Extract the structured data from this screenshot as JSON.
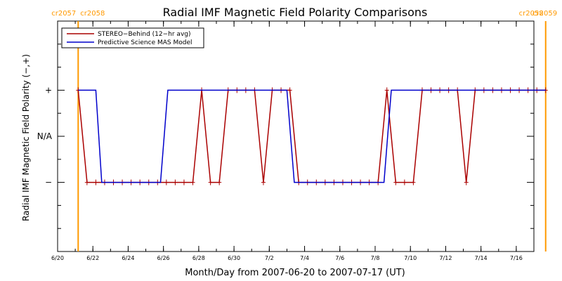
{
  "chart_data": {
    "type": "line",
    "title": "Radial IMF Magnetic Field Polarity Comparisons",
    "xlabel": "Month/Day from 2007-06-20 to 2007-07-17 (UT)",
    "ylabel": "Radial IMF Magnetic Field Polarity (−,+)",
    "xlim": [
      "2007-06-20",
      "2007-07-17"
    ],
    "ylim": [
      -2.5,
      2.5
    ],
    "x_ticks": [
      {
        "date": "2007-06-20",
        "label": "6/20"
      },
      {
        "date": "2007-06-22",
        "label": "6/22"
      },
      {
        "date": "2007-06-24",
        "label": "6/24"
      },
      {
        "date": "2007-06-26",
        "label": "6/26"
      },
      {
        "date": "2007-06-28",
        "label": "6/28"
      },
      {
        "date": "2007-06-30",
        "label": "6/30"
      },
      {
        "date": "2007-07-02",
        "label": "7/2"
      },
      {
        "date": "2007-07-04",
        "label": "7/4"
      },
      {
        "date": "2007-07-06",
        "label": "7/6"
      },
      {
        "date": "2007-07-08",
        "label": "7/8"
      },
      {
        "date": "2007-07-10",
        "label": "7/10"
      },
      {
        "date": "2007-07-12",
        "label": "7/12"
      },
      {
        "date": "2007-07-14",
        "label": "7/14"
      },
      {
        "date": "2007-07-16",
        "label": "7/16"
      }
    ],
    "y_ticks": [
      {
        "value": 1,
        "label": "+"
      },
      {
        "value": 0,
        "label": "N/A"
      },
      {
        "value": -1,
        "label": "−"
      }
    ],
    "carrington_boundaries": [
      {
        "date": "2007-06-21 04:00",
        "left_label": "cr2057",
        "right_label": "cr2058",
        "color": "#ff9900"
      },
      {
        "date": "2007-07-17 16:00",
        "left_label": "cr2058",
        "right_label": "cr2059",
        "color": "#ff9900"
      }
    ],
    "legend": {
      "placement": "top-left"
    },
    "series": [
      {
        "name": "STEREO−Behind (12−hr avg)",
        "color": "#aa0000",
        "marker": "plus",
        "points": [
          [
            "2007-06-21 04:00",
            1
          ],
          [
            "2007-06-21 16:00",
            -1
          ],
          [
            "2007-06-22 04:00",
            -1
          ],
          [
            "2007-06-22 16:00",
            -1
          ],
          [
            "2007-06-23 04:00",
            -1
          ],
          [
            "2007-06-23 16:00",
            -1
          ],
          [
            "2007-06-24 04:00",
            -1
          ],
          [
            "2007-06-24 16:00",
            -1
          ],
          [
            "2007-06-25 04:00",
            -1
          ],
          [
            "2007-06-25 16:00",
            -1
          ],
          [
            "2007-06-26 04:00",
            -1
          ],
          [
            "2007-06-26 16:00",
            -1
          ],
          [
            "2007-06-27 04:00",
            -1
          ],
          [
            "2007-06-27 16:00",
            -1
          ],
          [
            "2007-06-28 04:00",
            1
          ],
          [
            "2007-06-28 16:00",
            -1
          ],
          [
            "2007-06-29 04:00",
            -1
          ],
          [
            "2007-06-29 16:00",
            1
          ],
          [
            "2007-06-30 04:00",
            1
          ],
          [
            "2007-06-30 16:00",
            1
          ],
          [
            "2007-07-01 04:00",
            1
          ],
          [
            "2007-07-01 16:00",
            -1
          ],
          [
            "2007-07-02 04:00",
            1
          ],
          [
            "2007-07-02 16:00",
            1
          ],
          [
            "2007-07-03 04:00",
            1
          ],
          [
            "2007-07-03 16:00",
            -1
          ],
          [
            "2007-07-04 04:00",
            -1
          ],
          [
            "2007-07-04 16:00",
            -1
          ],
          [
            "2007-07-05 04:00",
            -1
          ],
          [
            "2007-07-05 16:00",
            -1
          ],
          [
            "2007-07-06 04:00",
            -1
          ],
          [
            "2007-07-06 16:00",
            -1
          ],
          [
            "2007-07-07 04:00",
            -1
          ],
          [
            "2007-07-07 16:00",
            -1
          ],
          [
            "2007-07-08 04:00",
            -1
          ],
          [
            "2007-07-08 16:00",
            1
          ],
          [
            "2007-07-09 04:00",
            -1
          ],
          [
            "2007-07-09 16:00",
            -1
          ],
          [
            "2007-07-10 04:00",
            -1
          ],
          [
            "2007-07-10 16:00",
            1
          ],
          [
            "2007-07-11 04:00",
            1
          ],
          [
            "2007-07-11 16:00",
            1
          ],
          [
            "2007-07-12 04:00",
            1
          ],
          [
            "2007-07-12 16:00",
            1
          ],
          [
            "2007-07-13 04:00",
            -1
          ],
          [
            "2007-07-13 16:00",
            1
          ],
          [
            "2007-07-14 04:00",
            1
          ],
          [
            "2007-07-14 16:00",
            1
          ],
          [
            "2007-07-15 04:00",
            1
          ],
          [
            "2007-07-15 16:00",
            1
          ],
          [
            "2007-07-16 04:00",
            1
          ],
          [
            "2007-07-16 16:00",
            1
          ],
          [
            "2007-07-17 04:00",
            1
          ],
          [
            "2007-07-17 16:00",
            1
          ]
        ]
      },
      {
        "name": "Predictive Science MAS Model",
        "color": "#0000cc",
        "marker": "none",
        "points": [
          [
            "2007-06-21 04:00",
            1
          ],
          [
            "2007-06-22 04:00",
            1
          ],
          [
            "2007-06-22 12:00",
            -1
          ],
          [
            "2007-06-25 20:00",
            -1
          ],
          [
            "2007-06-26 06:00",
            1
          ],
          [
            "2007-07-03 00:00",
            1
          ],
          [
            "2007-07-03 10:00",
            -1
          ],
          [
            "2007-07-08 12:00",
            -1
          ],
          [
            "2007-07-08 22:00",
            1
          ],
          [
            "2007-07-17 16:00",
            1
          ]
        ]
      }
    ]
  }
}
